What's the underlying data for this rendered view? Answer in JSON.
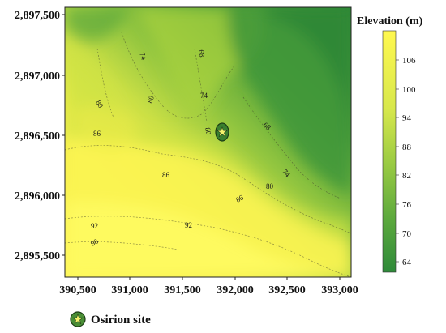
{
  "map": {
    "x_ticks": [
      "390,500",
      "391,000",
      "391,500",
      "392,000",
      "392,500",
      "393,000"
    ],
    "y_ticks": [
      "2,897,500",
      "2,897,000",
      "2,896,500",
      "2,896,000",
      "2,895,500"
    ],
    "contour_labels": [
      "74",
      "68",
      "80",
      "80",
      "74",
      "86",
      "80",
      "68",
      "74",
      "86",
      "80",
      "86",
      "92",
      "92",
      "98"
    ],
    "site": {
      "name": "Osirion site",
      "icon": "star-in-circle-icon"
    }
  },
  "colorbar": {
    "title": "Elevation (m)",
    "ticks": [
      "106",
      "100",
      "94",
      "88",
      "82",
      "76",
      "70",
      "64"
    ],
    "color_low": "#2e8a3a",
    "color_high": "#fff84f"
  },
  "legend": {
    "label": "Osirion site",
    "icon": "star-in-circle-icon"
  },
  "colors": {
    "low_green": "#2f8b3b",
    "mid_green": "#6fb33e",
    "yellow_green": "#c7dd41",
    "yellow": "#f8f34c",
    "pale_yellow": "#fff95b"
  }
}
